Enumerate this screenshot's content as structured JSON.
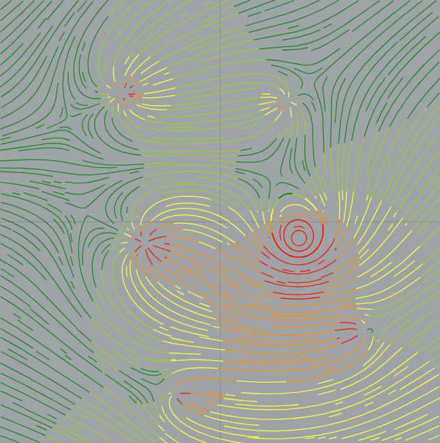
{
  "chart_data": {
    "type": "streamline",
    "xlim": [
      0,
      1
    ],
    "ylim": [
      0,
      1
    ],
    "xticks": [
      0,
      0.5,
      1
    ],
    "yticks": [
      0,
      0.5,
      1
    ],
    "grid": true,
    "tick_labels": false,
    "background_flow": [
      0.5,
      0.15
    ],
    "singularities": [
      {
        "type": "source",
        "x": 0.33,
        "y": 0.45,
        "strength": 0.08
      },
      {
        "type": "source",
        "x": 0.4,
        "y": 0.11,
        "strength": 0.04
      },
      {
        "type": "source",
        "x": 0.28,
        "y": 0.79,
        "strength": 0.05
      },
      {
        "type": "sink",
        "x": 0.65,
        "y": 0.77,
        "strength": 0.03
      },
      {
        "type": "sink",
        "x": 0.82,
        "y": 0.25,
        "strength": 0.04
      },
      {
        "type": "vortex",
        "x": 0.68,
        "y": 0.46,
        "strength": 0.15
      }
    ],
    "colors": [
      "#1f8a1f",
      "#9acd32",
      "#ffff33",
      "#ff8c00",
      "#ff1a00"
    ]
  }
}
